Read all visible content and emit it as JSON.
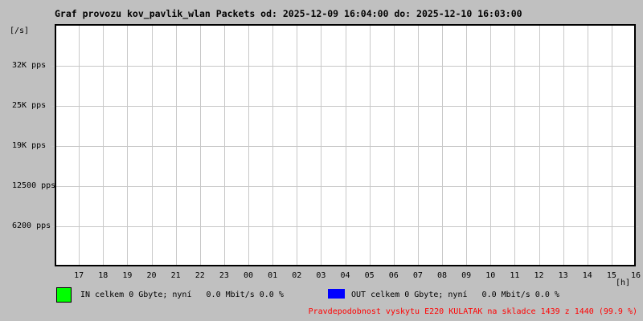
{
  "colors": {
    "background": "#c0c0c0",
    "plot_background": "#ffffff",
    "grid": "#c8c8c8",
    "plot_border": "#000000",
    "series_in": "#00ff00",
    "series_out": "#0000ff",
    "alert_text": "#ff0000"
  },
  "chart_data": {
    "type": "line",
    "title": "Graf provozu kov_pavlik_wlan Packets od: 2025-12-09 16:04:00 do: 2025-12-10 16:03:00",
    "y_unit_label": "[/s]",
    "x_unit_label": "[h]",
    "x_ticks": [
      "17",
      "18",
      "19",
      "20",
      "21",
      "22",
      "23",
      "00",
      "01",
      "02",
      "03",
      "04",
      "05",
      "06",
      "07",
      "08",
      "09",
      "10",
      "11",
      "12",
      "13",
      "14",
      "15",
      "16"
    ],
    "y_ticks": [
      {
        "label": "32K pps",
        "value": 32000
      },
      {
        "label": "25K pps",
        "value": 25000
      },
      {
        "label": "19K pps",
        "value": 19000
      },
      {
        "label": "12500 pps",
        "value": 12500
      },
      {
        "label": "6200 pps",
        "value": 6200
      }
    ],
    "ylim": [
      0,
      37600
    ],
    "grid": true,
    "legend_position": "bottom",
    "series": [
      {
        "name": "IN",
        "color": "#00ff00",
        "values": []
      },
      {
        "name": "OUT",
        "color": "#0000ff",
        "values": []
      }
    ]
  },
  "legend": {
    "in_label": "IN celkem 0 Gbyte; nyní   0.0 Mbit/s 0.0 %",
    "out_label": "OUT celkem 0 Gbyte; nyní   0.0 Mbit/s 0.0 %"
  },
  "footer": {
    "alert_text": "Pravdepodobnost vyskytu E220 KULATAK na skladce 1439 z 1440 (99.9 %)"
  }
}
